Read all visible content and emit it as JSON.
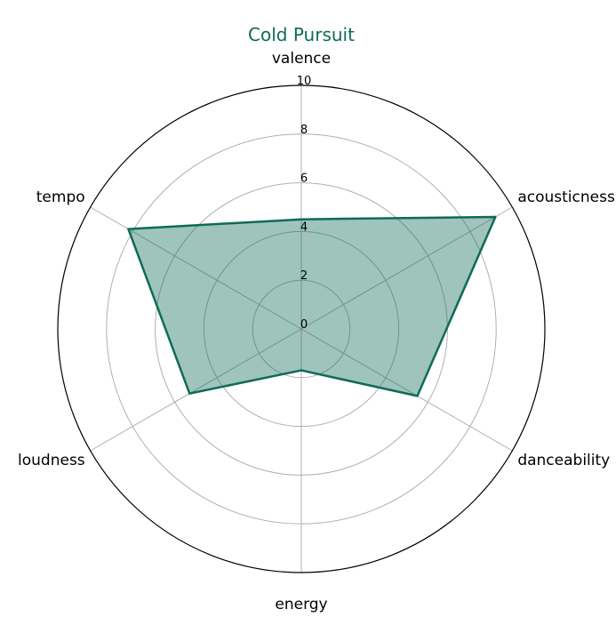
{
  "colors": {
    "series_line": "#0f6b55",
    "series_fill": "#0f6b55",
    "grid": "#b0b0b0",
    "title": "#0f6b55"
  },
  "chart_data": {
    "type": "radar",
    "title": "Cold Pursuit",
    "categories": [
      "valence",
      "acousticness",
      "danceability",
      "energy",
      "loudness",
      "tempo"
    ],
    "series": [
      {
        "values": [
          4.5,
          9.2,
          5.5,
          1.7,
          5.3,
          8.2
        ]
      }
    ],
    "rlim": [
      0,
      10
    ],
    "rticks": [
      "0",
      "2",
      "4",
      "6",
      "8",
      "10"
    ],
    "grid": true,
    "legend": "none"
  }
}
